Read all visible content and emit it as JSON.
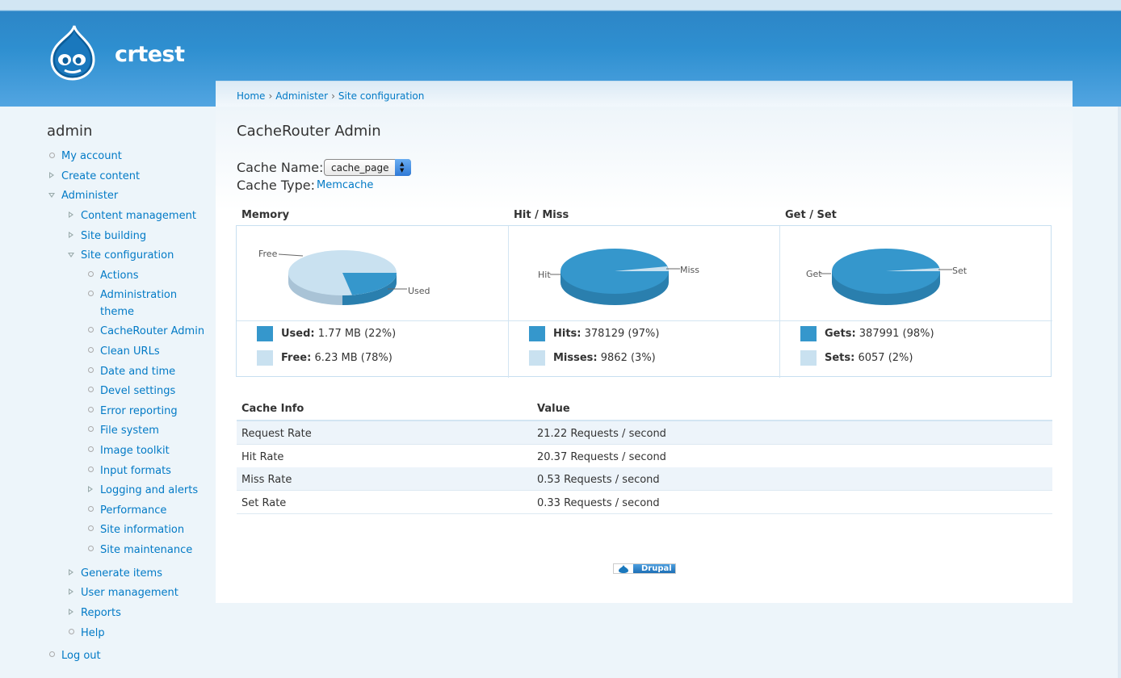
{
  "site": {
    "name": "crtest",
    "logo_icon": "drupal-drop-icon"
  },
  "breadcrumb": [
    "Home",
    "Administer",
    "Site configuration"
  ],
  "breadcrumb_sep": "›",
  "sidebar": {
    "title": "admin",
    "items": {
      "my_account": "My account",
      "create_content": "Create content",
      "administer": "Administer",
      "content_management": "Content management",
      "site_building": "Site building",
      "site_configuration": "Site configuration",
      "actions": "Actions",
      "administration_theme_1": "Administration",
      "administration_theme_2": "theme",
      "cacherouter_admin": "CacheRouter Admin",
      "clean_urls": "Clean URLs",
      "date_time": "Date and time",
      "devel_settings": "Devel settings",
      "error_reporting": "Error reporting",
      "file_system": "File system",
      "image_toolkit": "Image toolkit",
      "input_formats": "Input formats",
      "logging_alerts": "Logging and alerts",
      "performance": "Performance",
      "site_information": "Site information",
      "site_maintenance": "Site maintenance",
      "generate_items": "Generate items",
      "user_management": "User management",
      "reports": "Reports",
      "help": "Help",
      "log_out": "Log out"
    }
  },
  "page": {
    "title": "CacheRouter Admin",
    "cache_name_label": "Cache Name:",
    "cache_name_value": "cache_page",
    "cache_type_label": "Cache Type:",
    "cache_type_value": "Memcache"
  },
  "stats": {
    "memory": {
      "header": "Memory",
      "label_a": "Free",
      "label_b": "Used",
      "row1_key": "Used:",
      "row1_val": "1.77 MB (22%)",
      "row2_key": "Free:",
      "row2_val": "6.23 MB (78%)"
    },
    "hitmiss": {
      "header": "Hit / Miss",
      "label_a": "Hit",
      "label_b": "Miss",
      "row1_key": "Hits:",
      "row1_val": "378129 (97%)",
      "row2_key": "Misses:",
      "row2_val": "9862 (3%)"
    },
    "getset": {
      "header": "Get / Set",
      "label_a": "Get",
      "label_b": "Set",
      "row1_key": "Gets:",
      "row1_val": "387991 (98%)",
      "row2_key": "Sets:",
      "row2_val": "6057 (2%)"
    },
    "colors": {
      "dark": "#3597cc",
      "light": "#c9e1f0"
    }
  },
  "info_table": {
    "headers": [
      "Cache Info",
      "Value"
    ],
    "rows": [
      [
        "Request Rate",
        "21.22 Requests / second"
      ],
      [
        "Hit Rate",
        "20.37 Requests / second"
      ],
      [
        "Miss Rate",
        "0.53 Requests / second"
      ],
      [
        "Set Rate",
        "0.33 Requests / second"
      ]
    ]
  },
  "footer": {
    "badge_text": "Drupal"
  }
}
